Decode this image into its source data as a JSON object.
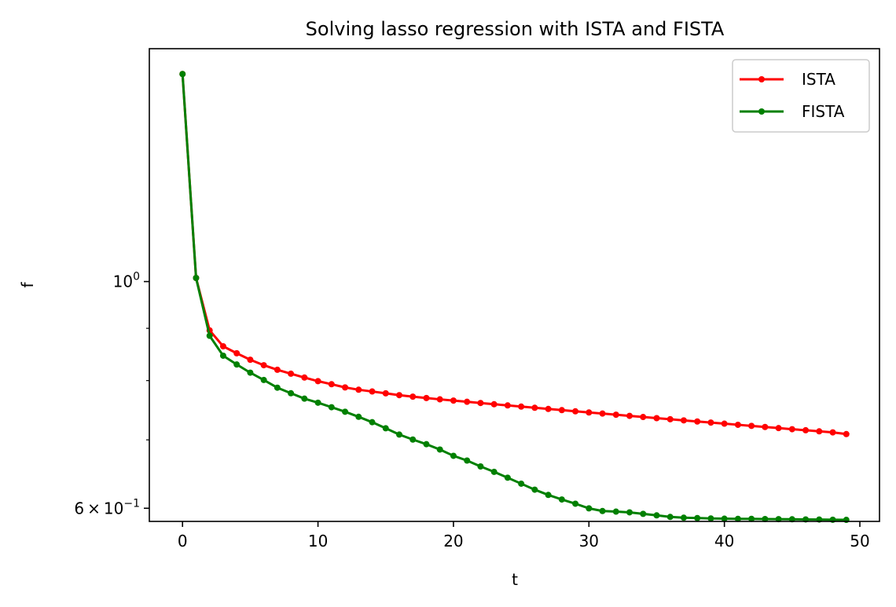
{
  "chart_data": {
    "type": "line",
    "title": "Solving lasso regression with ISTA and FISTA",
    "xlabel": "t",
    "ylabel": "f",
    "yscale": "log",
    "xlim": [
      -2.45,
      51.45
    ],
    "ylim": [
      0.5825,
      1.69
    ],
    "xticks": [
      0,
      10,
      20,
      30,
      40,
      50
    ],
    "xtick_labels": [
      "0",
      "10",
      "20",
      "30",
      "40",
      "50"
    ],
    "yticks": [
      1.0,
      0.6
    ],
    "ytick_labels": [
      {
        "mantissa": "",
        "base": "10",
        "exp": "0"
      },
      {
        "mantissa": "6",
        "base": "10",
        "exp": "−1"
      }
    ],
    "minor_yticks": [
      0.7,
      0.8,
      0.9
    ],
    "grid": false,
    "legend_position": "top-right",
    "x": [
      0,
      1,
      2,
      3,
      4,
      5,
      6,
      7,
      8,
      9,
      10,
      11,
      12,
      13,
      14,
      15,
      16,
      17,
      18,
      19,
      20,
      21,
      22,
      23,
      24,
      25,
      26,
      27,
      28,
      29,
      30,
      31,
      32,
      33,
      34,
      35,
      36,
      37,
      38,
      39,
      40,
      41,
      42,
      43,
      44,
      45,
      46,
      47,
      48,
      49
    ],
    "series": [
      {
        "name": "ISTA",
        "color": "#ff0000",
        "values": [
          1.5963,
          1.0081,
          0.8959,
          0.8643,
          0.8508,
          0.8385,
          0.8282,
          0.8197,
          0.8125,
          0.8055,
          0.799,
          0.7935,
          0.7878,
          0.7837,
          0.7806,
          0.7774,
          0.7742,
          0.7716,
          0.7692,
          0.7669,
          0.7648,
          0.7627,
          0.7606,
          0.7585,
          0.7565,
          0.7545,
          0.7525,
          0.7505,
          0.7485,
          0.7465,
          0.7446,
          0.7427,
          0.7408,
          0.7389,
          0.737,
          0.7351,
          0.7333,
          0.7314,
          0.7296,
          0.7278,
          0.726,
          0.7242,
          0.7224,
          0.7206,
          0.7188,
          0.717,
          0.7153,
          0.7136,
          0.7119,
          0.7092
        ]
      },
      {
        "name": "FISTA",
        "color": "#008000",
        "values": [
          1.5963,
          1.0081,
          0.885,
          0.8462,
          0.8296,
          0.8144,
          0.8011,
          0.7873,
          0.7775,
          0.7681,
          0.7611,
          0.7534,
          0.7458,
          0.7373,
          0.7284,
          0.7185,
          0.7084,
          0.7005,
          0.6932,
          0.6849,
          0.6753,
          0.6681,
          0.6593,
          0.6513,
          0.6428,
          0.6342,
          0.6257,
          0.6183,
          0.612,
          0.6062,
          0.5999,
          0.5963,
          0.5955,
          0.5945,
          0.5925,
          0.5905,
          0.5884,
          0.5874,
          0.5869,
          0.5864,
          0.5861,
          0.5859,
          0.5859,
          0.5856,
          0.5855,
          0.5853,
          0.5851,
          0.585,
          0.5847,
          0.5845
        ]
      }
    ]
  }
}
